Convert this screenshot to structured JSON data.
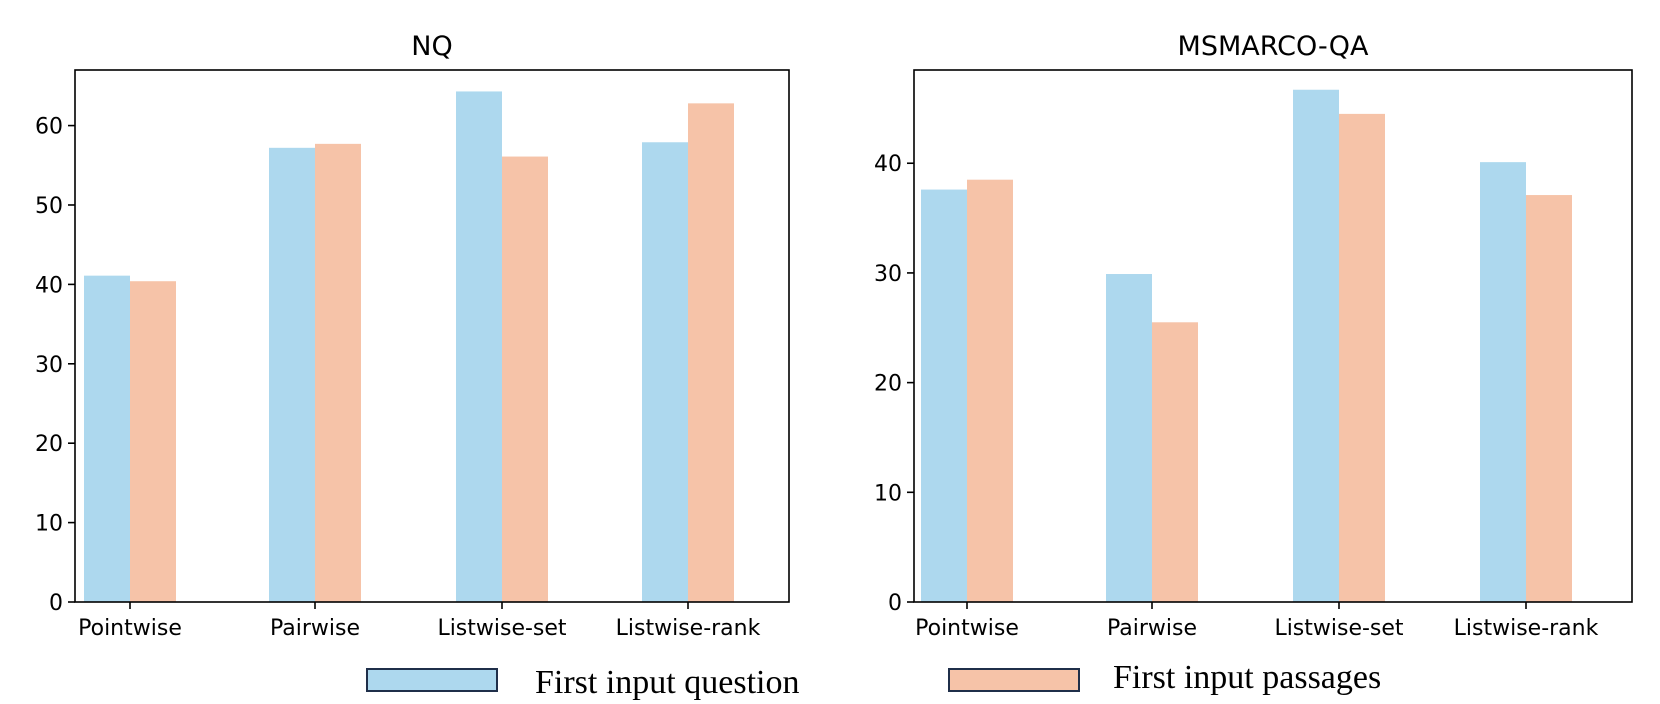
{
  "chart_data": [
    {
      "type": "bar",
      "title": "NQ",
      "xlabel": "",
      "ylabel": "",
      "categories": [
        "Pointwise",
        "Pairwise",
        "Listwise-set",
        "Listwise-rank"
      ],
      "ylim": [
        0,
        67
      ],
      "yticks": [
        "0",
        "10",
        "20",
        "30",
        "40",
        "50",
        "60"
      ],
      "series": [
        {
          "name": "First input question",
          "values": [
            41.1,
            57.2,
            64.3,
            57.9
          ]
        },
        {
          "name": "First input passages",
          "values": [
            40.4,
            57.7,
            56.1,
            62.8
          ]
        }
      ]
    },
    {
      "type": "bar",
      "title": "MSMARCO-QA",
      "xlabel": "",
      "ylabel": "",
      "categories": [
        "Pointwise",
        "Pairwise",
        "Listwise-set",
        "Listwise-rank"
      ],
      "ylim": [
        0,
        48.5
      ],
      "yticks": [
        "0",
        "10",
        "20",
        "30",
        "40"
      ],
      "series": [
        {
          "name": "First input question",
          "values": [
            37.6,
            29.9,
            46.7,
            40.1
          ]
        },
        {
          "name": "First input passages",
          "values": [
            38.5,
            25.5,
            44.5,
            37.1
          ]
        }
      ]
    }
  ],
  "colors": {
    "series": [
      "#add8ee",
      "#f6c3a8"
    ],
    "legend_border": "#1f2f4a",
    "axis": "#000000"
  },
  "legend": {
    "placement": "bottom-center",
    "items": [
      {
        "label": "First input question"
      },
      {
        "label": "First input passages"
      }
    ]
  }
}
